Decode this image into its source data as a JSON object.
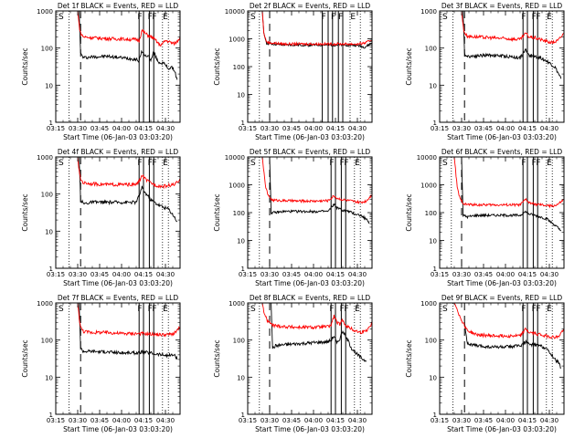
{
  "figure": {
    "xlabel": "Start Time (06-Jan-03 03:03:20)",
    "ylabel": "Counts/sec",
    "xticks": [
      "03:15",
      "03:30",
      "03:45",
      "04:00",
      "04:15",
      "04:30"
    ],
    "yticks": [
      "1",
      "10",
      "100",
      "1000",
      "10000"
    ],
    "colors": {
      "events": "#000000",
      "lld": "#ff0000",
      "axes": "#000000",
      "background": "#ffffff"
    }
  },
  "chart_data": [
    {
      "type": "line",
      "title": "Det 1f BLACK = Events, RED = LLD",
      "ylim": [
        1,
        1000
      ],
      "x_unit": "minutes",
      "xlim": [
        195,
        280
      ],
      "corner_labels": [
        {
          "text": "S",
          "x": 195
        },
        {
          "text": "F",
          "x": 252.5
        },
        {
          "text": "F",
          "x": 259.5
        },
        {
          "text": "F",
          "x": 262.5
        },
        {
          "text": "E",
          "x": 270
        }
      ],
      "solid_markers": [
        252,
        255,
        259,
        262
      ],
      "dotted_markers": [
        204,
        268,
        272
      ],
      "dashed_marker": 212,
      "series": [
        {
          "name": "Events",
          "x": [
            211,
            212,
            214,
            220,
            230,
            240,
            250,
            252,
            254,
            256,
            258,
            260,
            262,
            264,
            266,
            268,
            270,
            272,
            274,
            276,
            278
          ],
          "values": [
            1000,
            70,
            55,
            58,
            60,
            55,
            50,
            45,
            85,
            60,
            65,
            45,
            80,
            50,
            40,
            40,
            35,
            28,
            30,
            26,
            14
          ]
        },
        {
          "name": "LLD",
          "x": [
            210,
            211,
            212,
            214,
            220,
            230,
            240,
            250,
            252,
            254,
            256,
            258,
            260,
            262,
            264,
            266,
            268,
            270,
            272,
            274,
            276,
            278,
            280
          ],
          "values": [
            1000,
            400,
            250,
            200,
            190,
            180,
            175,
            170,
            160,
            300,
            250,
            220,
            200,
            180,
            150,
            120,
            130,
            160,
            150,
            140,
            130,
            150,
            200
          ]
        }
      ]
    },
    {
      "type": "line",
      "title": "Det 2f BLACK = Events, RED = LLD",
      "ylim": [
        1,
        10000
      ],
      "x_unit": "minutes",
      "xlim": [
        195,
        280
      ],
      "corner_labels": [
        {
          "text": "S",
          "x": 195
        },
        {
          "text": "F",
          "x": 247
        },
        {
          "text": "F",
          "x": 253.5
        },
        {
          "text": "F",
          "x": 258.5
        },
        {
          "text": "E",
          "x": 267
        }
      ],
      "solid_markers": [
        246,
        250,
        253,
        257,
        260
      ],
      "dotted_markers": [
        203,
        265,
        272
      ],
      "dashed_marker": 210,
      "series": [
        {
          "name": "Events",
          "x": [
            205,
            206,
            208,
            212,
            220,
            230,
            240,
            250,
            260,
            265,
            270,
            275,
            280
          ],
          "values": [
            10000,
            1500,
            700,
            650,
            600,
            600,
            600,
            600,
            600,
            600,
            580,
            500,
            700
          ]
        },
        {
          "name": "LLD",
          "x": [
            205,
            206,
            208,
            212,
            220,
            230,
            240,
            250,
            260,
            265,
            270,
            275,
            280
          ],
          "values": [
            10000,
            1600,
            750,
            700,
            650,
            650,
            650,
            650,
            650,
            650,
            640,
            700,
            900
          ]
        }
      ]
    },
    {
      "type": "line",
      "title": "Det 3f BLACK = Events, RED = LLD",
      "ylim": [
        1,
        1000
      ],
      "x_unit": "minutes",
      "xlim": [
        195,
        280
      ],
      "corner_labels": [
        {
          "text": "S",
          "x": 195
        },
        {
          "text": "F",
          "x": 252.5
        },
        {
          "text": "F",
          "x": 259.5
        },
        {
          "text": "F",
          "x": 262.5
        },
        {
          "text": "E",
          "x": 270
        }
      ],
      "solid_markers": [
        252,
        255,
        259,
        262
      ],
      "dotted_markers": [
        204,
        268,
        272
      ],
      "dashed_marker": 212,
      "series": [
        {
          "name": "Events",
          "x": [
            211,
            212,
            214,
            220,
            230,
            240,
            250,
            254,
            256,
            260,
            264,
            268,
            270,
            274,
            278
          ],
          "values": [
            1000,
            70,
            60,
            62,
            65,
            60,
            55,
            90,
            65,
            60,
            55,
            45,
            40,
            30,
            15
          ]
        },
        {
          "name": "LLD",
          "x": [
            210,
            211,
            212,
            214,
            220,
            230,
            240,
            250,
            254,
            256,
            260,
            264,
            268,
            272,
            276,
            280
          ],
          "values": [
            1000,
            400,
            260,
            210,
            200,
            190,
            180,
            170,
            250,
            200,
            190,
            170,
            150,
            140,
            160,
            250
          ]
        }
      ]
    },
    {
      "type": "line",
      "title": "Det 4f BLACK = Events, RED = LLD",
      "ylim": [
        1,
        1000
      ],
      "x_unit": "minutes",
      "xlim": [
        195,
        280
      ],
      "corner_labels": [
        {
          "text": "S",
          "x": 195
        },
        {
          "text": "F",
          "x": 252.5
        },
        {
          "text": "F",
          "x": 259.5
        },
        {
          "text": "F",
          "x": 262.5
        },
        {
          "text": "E",
          "x": 270
        }
      ],
      "solid_markers": [
        252,
        255,
        259,
        262
      ],
      "dotted_markers": [
        204,
        268,
        272
      ],
      "dashed_marker": 212,
      "series": [
        {
          "name": "Events",
          "x": [
            211,
            212,
            214,
            220,
            230,
            240,
            250,
            252,
            254,
            256,
            258,
            260,
            264,
            268,
            272,
            276,
            278
          ],
          "values": [
            1000,
            70,
            55,
            60,
            60,
            60,
            60,
            90,
            150,
            110,
            90,
            70,
            55,
            45,
            40,
            25,
            18
          ]
        },
        {
          "name": "LLD",
          "x": [
            210,
            211,
            212,
            214,
            220,
            230,
            240,
            250,
            252,
            254,
            256,
            258,
            260,
            264,
            268,
            272,
            276,
            280
          ],
          "values": [
            1000,
            400,
            250,
            200,
            190,
            180,
            180,
            180,
            220,
            320,
            260,
            220,
            200,
            170,
            160,
            170,
            180,
            230
          ]
        }
      ]
    },
    {
      "type": "line",
      "title": "Det 5f BLACK = Events, RED = LLD",
      "ylim": [
        1,
        10000
      ],
      "x_unit": "minutes",
      "xlim": [
        195,
        280
      ],
      "corner_labels": [
        {
          "text": "S",
          "x": 195
        },
        {
          "text": "F",
          "x": 252.5
        },
        {
          "text": "F",
          "x": 259.5
        },
        {
          "text": "F",
          "x": 262.5
        },
        {
          "text": "E",
          "x": 270
        }
      ],
      "solid_markers": [
        252,
        255,
        259,
        262
      ],
      "dotted_markers": [
        203,
        268,
        272
      ],
      "dashed_marker": 210,
      "series": [
        {
          "name": "Events",
          "x": [
            210,
            211,
            214,
            220,
            230,
            240,
            250,
            254,
            256,
            260,
            264,
            268,
            272,
            276,
            278
          ],
          "values": [
            10000,
            100,
            100,
            110,
            110,
            110,
            110,
            200,
            150,
            120,
            110,
            90,
            80,
            60,
            40
          ]
        },
        {
          "name": "LLD",
          "x": [
            205,
            207,
            209,
            212,
            220,
            230,
            240,
            250,
            254,
            256,
            260,
            264,
            268,
            272,
            276,
            280
          ],
          "values": [
            10000,
            1000,
            400,
            280,
            270,
            260,
            260,
            270,
            400,
            330,
            290,
            270,
            250,
            230,
            260,
            450
          ]
        }
      ]
    },
    {
      "type": "line",
      "title": "Det 6f BLACK = Events, RED = LLD",
      "ylim": [
        1,
        10000
      ],
      "x_unit": "minutes",
      "xlim": [
        195,
        280
      ],
      "corner_labels": [
        {
          "text": "S",
          "x": 195
        },
        {
          "text": "F",
          "x": 252.5
        },
        {
          "text": "F",
          "x": 259.5
        },
        {
          "text": "F",
          "x": 262.5
        },
        {
          "text": "E",
          "x": 270
        }
      ],
      "solid_markers": [
        252,
        255,
        259,
        262
      ],
      "dotted_markers": [
        203,
        268,
        272
      ],
      "dashed_marker": 210,
      "series": [
        {
          "name": "Events",
          "x": [
            210,
            211,
            214,
            220,
            230,
            240,
            250,
            254,
            256,
            260,
            264,
            268,
            270,
            274,
            278
          ],
          "values": [
            10000,
            80,
            70,
            80,
            80,
            80,
            80,
            110,
            90,
            80,
            70,
            60,
            50,
            35,
            22
          ]
        },
        {
          "name": "LLD",
          "x": [
            205,
            207,
            209,
            212,
            220,
            230,
            240,
            250,
            254,
            256,
            260,
            264,
            268,
            272,
            276,
            280
          ],
          "values": [
            10000,
            800,
            300,
            200,
            190,
            190,
            190,
            190,
            300,
            230,
            200,
            190,
            180,
            170,
            200,
            290
          ]
        }
      ]
    },
    {
      "type": "line",
      "title": "Det 7f BLACK = Events, RED = LLD",
      "ylim": [
        1,
        1000
      ],
      "x_unit": "minutes",
      "xlim": [
        195,
        280
      ],
      "corner_labels": [
        {
          "text": "S",
          "x": 195
        },
        {
          "text": "F",
          "x": 252.5
        },
        {
          "text": "F",
          "x": 259.5
        },
        {
          "text": "F",
          "x": 262.5
        },
        {
          "text": "E",
          "x": 270
        }
      ],
      "solid_markers": [
        252,
        255,
        259,
        262
      ],
      "dotted_markers": [
        204,
        268,
        272
      ],
      "dashed_marker": 212,
      "series": [
        {
          "name": "Events",
          "x": [
            211,
            212,
            214,
            220,
            230,
            240,
            250,
            254,
            260,
            264,
            268,
            272,
            276,
            278
          ],
          "values": [
            1000,
            60,
            50,
            50,
            48,
            45,
            45,
            48,
            45,
            42,
            40,
            38,
            40,
            30
          ]
        },
        {
          "name": "LLD",
          "x": [
            210,
            211,
            212,
            214,
            220,
            230,
            240,
            250,
            254,
            260,
            264,
            268,
            272,
            276,
            280
          ],
          "values": [
            1000,
            400,
            220,
            170,
            160,
            160,
            150,
            150,
            150,
            145,
            140,
            140,
            140,
            150,
            220
          ]
        }
      ]
    },
    {
      "type": "line",
      "title": "Det 8f BLACK = Events, RED = LLD",
      "ylim": [
        1,
        1000
      ],
      "x_unit": "minutes",
      "xlim": [
        195,
        280
      ],
      "corner_labels": [
        {
          "text": "S",
          "x": 195
        },
        {
          "text": "F",
          "x": 252.5
        },
        {
          "text": "F",
          "x": 259.5
        },
        {
          "text": "F",
          "x": 262.5
        },
        {
          "text": "E",
          "x": 270
        }
      ],
      "solid_markers": [
        252,
        255,
        259,
        262
      ],
      "dotted_markers": [
        203,
        268,
        272
      ],
      "dashed_marker": 210,
      "series": [
        {
          "name": "Events",
          "x": [
            211,
            212,
            214,
            220,
            230,
            240,
            250,
            252,
            254,
            256,
            258,
            260,
            262,
            264,
            266,
            268,
            270,
            272,
            274,
            276
          ],
          "values": [
            1000,
            60,
            70,
            75,
            80,
            85,
            90,
            100,
            130,
            80,
            110,
            180,
            120,
            90,
            60,
            50,
            40,
            35,
            30,
            28
          ]
        },
        {
          "name": "LLD",
          "x": [
            205,
            206,
            208,
            212,
            220,
            230,
            240,
            250,
            252,
            254,
            256,
            258,
            260,
            262,
            264,
            266,
            268,
            270,
            272,
            276,
            280
          ],
          "values": [
            1000,
            600,
            350,
            250,
            230,
            220,
            220,
            230,
            250,
            450,
            300,
            260,
            350,
            250,
            220,
            200,
            180,
            170,
            160,
            180,
            280
          ]
        }
      ]
    },
    {
      "type": "line",
      "title": "Det 9f BLACK = Events, RED = LLD",
      "ylim": [
        1,
        1000
      ],
      "x_unit": "minutes",
      "xlim": [
        195,
        280
      ],
      "corner_labels": [
        {
          "text": "S",
          "x": 195
        },
        {
          "text": "F",
          "x": 252.5
        },
        {
          "text": "F",
          "x": 259.5
        },
        {
          "text": "F",
          "x": 262.5
        },
        {
          "text": "E",
          "x": 270
        }
      ],
      "solid_markers": [
        252,
        255,
        259,
        262
      ],
      "dotted_markers": [
        204,
        268,
        272
      ],
      "dashed_marker": 212,
      "series": [
        {
          "name": "Events",
          "x": [
            212,
            214,
            220,
            230,
            240,
            250,
            254,
            256,
            260,
            264,
            268,
            270,
            272,
            274,
            276,
            278
          ],
          "values": [
            300,
            80,
            70,
            65,
            65,
            70,
            90,
            75,
            75,
            70,
            60,
            45,
            40,
            30,
            25,
            18
          ]
        },
        {
          "name": "LLD",
          "x": [
            205,
            207,
            209,
            212,
            214,
            220,
            230,
            240,
            250,
            254,
            256,
            260,
            264,
            268,
            272,
            276,
            280
          ],
          "values": [
            1000,
            700,
            400,
            250,
            180,
            140,
            130,
            130,
            130,
            200,
            160,
            150,
            140,
            130,
            120,
            120,
            200
          ]
        }
      ]
    }
  ]
}
